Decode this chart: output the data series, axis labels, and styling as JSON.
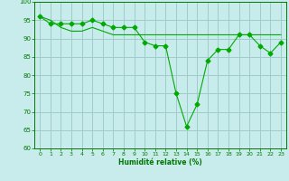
{
  "x": [
    0,
    1,
    2,
    3,
    4,
    5,
    6,
    7,
    8,
    9,
    10,
    11,
    12,
    13,
    14,
    15,
    16,
    17,
    18,
    19,
    20,
    21,
    22,
    23
  ],
  "line1": [
    96,
    94,
    94,
    94,
    94,
    95,
    94,
    93,
    93,
    93,
    89,
    88,
    88,
    75,
    66,
    72,
    84,
    87,
    87,
    91,
    91,
    88,
    86,
    89
  ],
  "line2": [
    96,
    95,
    93,
    92,
    92,
    93,
    92,
    91,
    91,
    91,
    91,
    91,
    91,
    91,
    91,
    91,
    91,
    91,
    91,
    91,
    91,
    91,
    91,
    91
  ],
  "bg_color": "#c8ecec",
  "grid_color": "#a0cccc",
  "line_color": "#00aa00",
  "ylim": [
    60,
    100
  ],
  "yticks": [
    60,
    65,
    70,
    75,
    80,
    85,
    90,
    95,
    100
  ],
  "xlabel": "Humidité relative (%)",
  "figsize": [
    3.2,
    2.0
  ],
  "dpi": 100
}
